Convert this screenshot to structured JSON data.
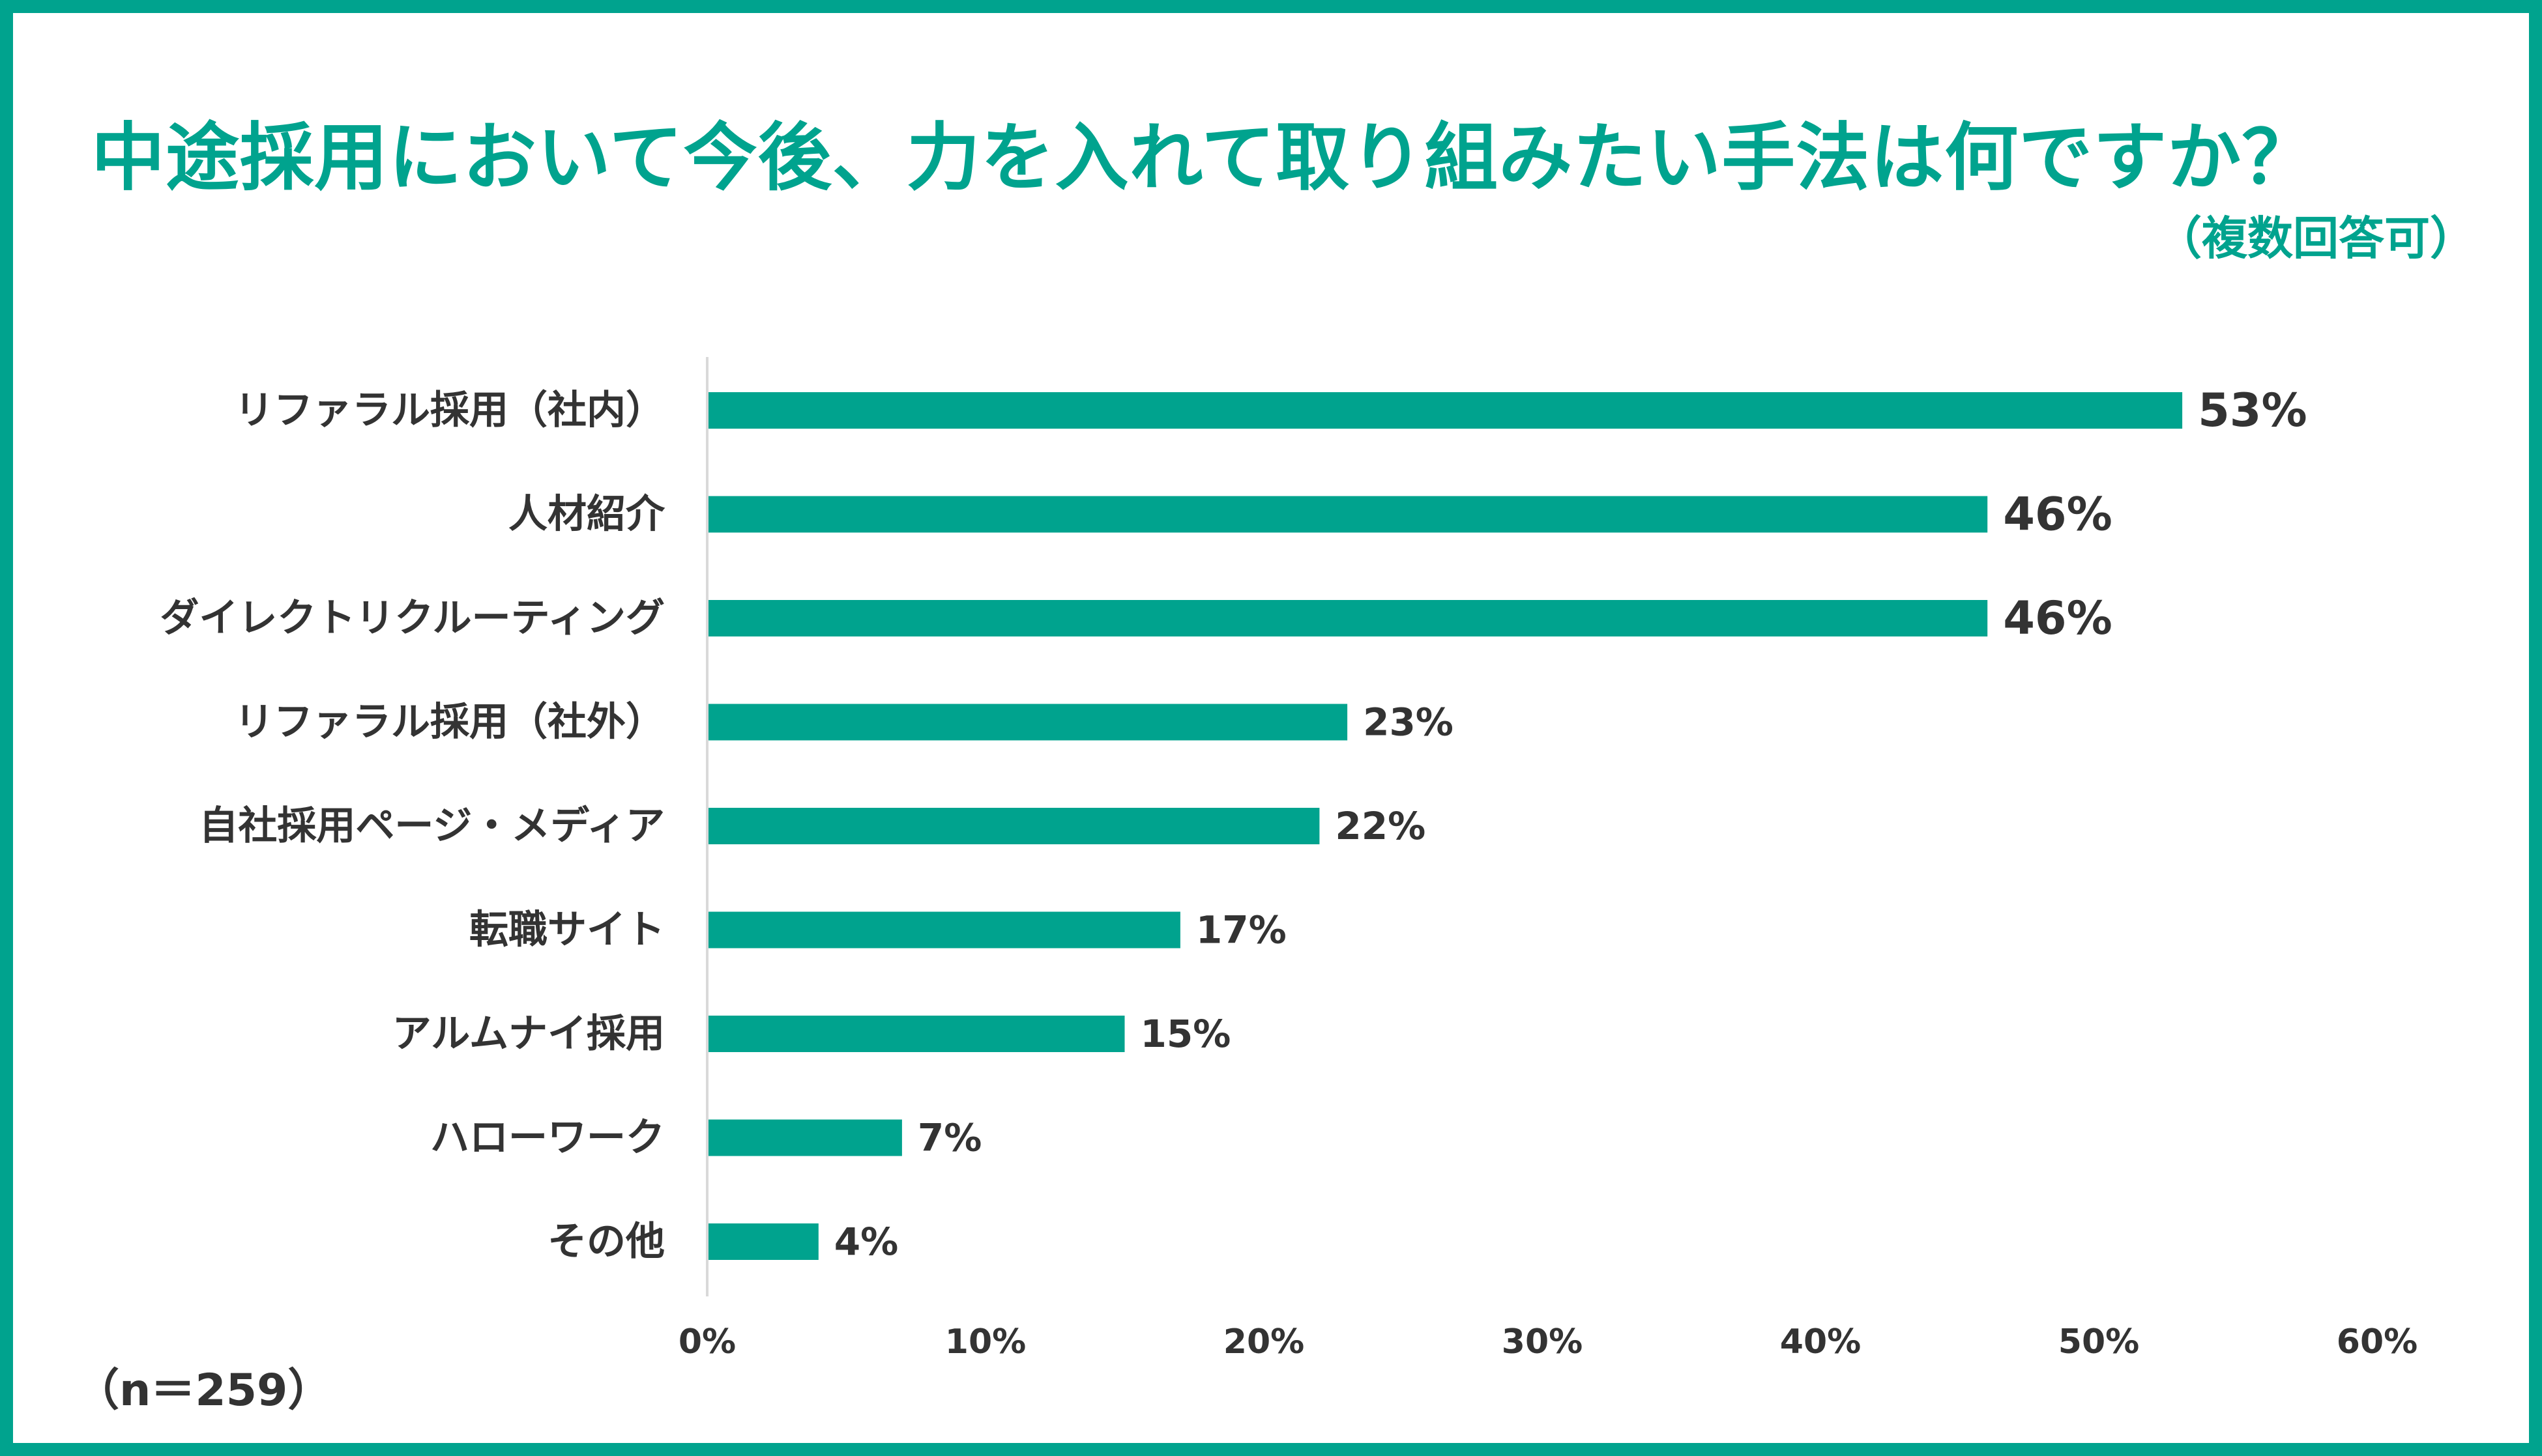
{
  "title": "中途採用において今後、力を入れて取り組みたい手法は何ですか？",
  "subtitle": "（複数回答可）",
  "sample_size": "（n＝259）",
  "colors": {
    "accent": "#00A38E",
    "text": "#333333",
    "axis": "#D9D9D9"
  },
  "chart_data": {
    "type": "bar",
    "orientation": "horizontal",
    "categories": [
      "リファラル採用（社内）",
      "人材紹介",
      "ダイレクトリクルーティング",
      "リファラル採用（社外）",
      "自社採用ページ・メディア",
      "転職サイト",
      "アルムナイ採用",
      "ハローワーク",
      "その他"
    ],
    "values": [
      53,
      46,
      46,
      23,
      22,
      17,
      15,
      7,
      4
    ],
    "value_labels": [
      "53%",
      "46%",
      "46%",
      "23%",
      "22%",
      "17%",
      "15%",
      "7%",
      "4%"
    ],
    "xlim": [
      0,
      60
    ],
    "xticks": [
      0,
      10,
      20,
      30,
      40,
      50,
      60
    ],
    "xtick_labels": [
      "0%",
      "10%",
      "20%",
      "30%",
      "40%",
      "50%",
      "60%"
    ],
    "grid": false,
    "legend": "none"
  }
}
